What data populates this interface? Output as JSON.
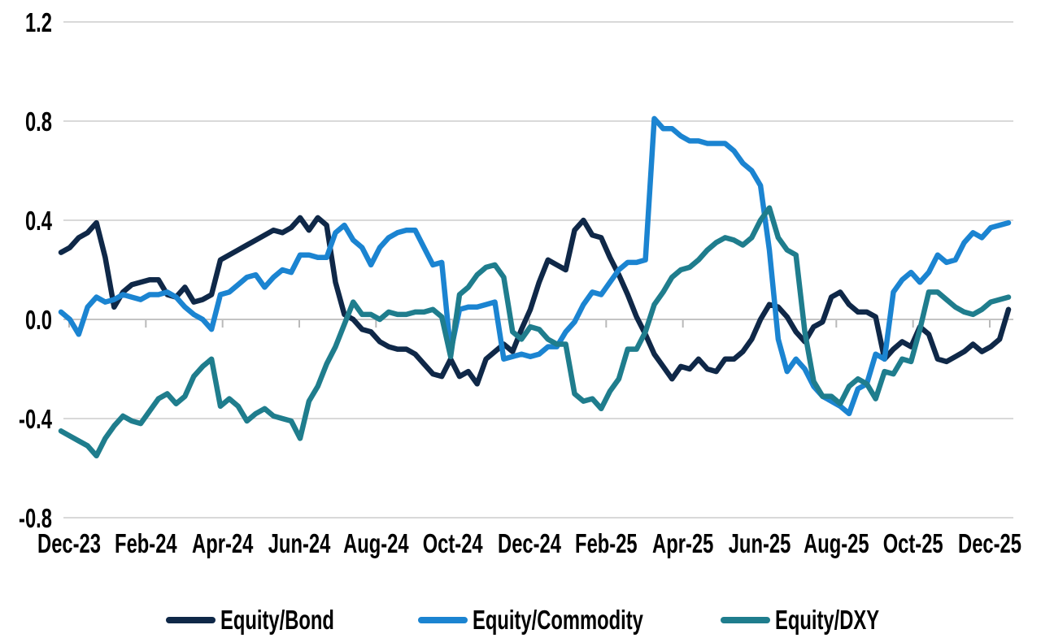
{
  "chart_data": {
    "type": "line",
    "title": "",
    "x_labels": [
      "Dec-23",
      "Feb-24",
      "Apr-24",
      "Jun-24",
      "Aug-24",
      "Oct-24",
      "Dec-24",
      "Feb-25",
      "Apr-25",
      "Jun-25",
      "Aug-25",
      "Oct-25",
      "Dec-25"
    ],
    "x_frequency": "weekly",
    "y_tick_labels": [
      "1.2",
      "0.8",
      "0.4",
      "0.0",
      "-0.4",
      "-0.8"
    ],
    "y_tick_values": [
      1.2,
      0.8,
      0.4,
      0,
      -0.4,
      -0.8
    ],
    "ylim": [
      -0.8,
      1.2
    ],
    "grid": "horizontal",
    "legend_position": "bottom",
    "colors": {
      "grid": "#d9d9d9",
      "axis": "#c4c4c4",
      "tick": "#b9b9b9",
      "text": "#000000"
    },
    "series": [
      {
        "name": "Equity/Bond",
        "color": "#0f2848",
        "values": [
          0.27,
          0.29,
          0.33,
          0.35,
          0.39,
          0.25,
          0.05,
          0.11,
          0.14,
          0.15,
          0.16,
          0.16,
          0.1,
          0.09,
          0.13,
          0.07,
          0.08,
          0.1,
          0.24,
          0.26,
          0.28,
          0.3,
          0.32,
          0.34,
          0.36,
          0.35,
          0.37,
          0.41,
          0.36,
          0.41,
          0.38,
          0.15,
          0.02,
          0.0,
          -0.04,
          -0.05,
          -0.09,
          -0.11,
          -0.12,
          -0.12,
          -0.14,
          -0.18,
          -0.22,
          -0.23,
          -0.16,
          -0.23,
          -0.21,
          -0.26,
          -0.16,
          -0.13,
          -0.1,
          -0.13,
          -0.04,
          0.04,
          0.15,
          0.24,
          0.22,
          0.2,
          0.36,
          0.4,
          0.34,
          0.33,
          0.25,
          0.18,
          0.1,
          0.01,
          -0.06,
          -0.14,
          -0.19,
          -0.24,
          -0.19,
          -0.2,
          -0.16,
          -0.2,
          -0.21,
          -0.16,
          -0.16,
          -0.13,
          -0.08,
          0.0,
          0.06,
          0.05,
          0.01,
          -0.05,
          -0.09,
          -0.03,
          -0.01,
          0.09,
          0.11,
          0.06,
          0.03,
          0.03,
          0.01,
          -0.16,
          -0.12,
          -0.09,
          -0.11,
          -0.03,
          -0.06,
          -0.16,
          -0.17,
          -0.15,
          -0.13,
          -0.1,
          -0.13,
          -0.11,
          -0.08,
          0.04
        ]
      },
      {
        "name": "Equity/Commodity",
        "color": "#1b84d1",
        "values": [
          0.03,
          0.0,
          -0.06,
          0.05,
          0.09,
          0.07,
          0.08,
          0.1,
          0.09,
          0.08,
          0.1,
          0.1,
          0.11,
          0.09,
          0.05,
          0.02,
          0.0,
          -0.04,
          0.1,
          0.11,
          0.14,
          0.17,
          0.18,
          0.13,
          0.17,
          0.2,
          0.19,
          0.26,
          0.26,
          0.25,
          0.25,
          0.35,
          0.38,
          0.32,
          0.29,
          0.22,
          0.29,
          0.33,
          0.35,
          0.36,
          0.36,
          0.29,
          0.22,
          0.23,
          -0.13,
          0.04,
          0.05,
          0.05,
          0.06,
          0.07,
          -0.16,
          -0.15,
          -0.14,
          -0.15,
          -0.14,
          -0.11,
          -0.11,
          -0.05,
          -0.01,
          0.06,
          0.11,
          0.1,
          0.15,
          0.2,
          0.23,
          0.23,
          0.24,
          0.81,
          0.77,
          0.77,
          0.74,
          0.72,
          0.72,
          0.71,
          0.71,
          0.71,
          0.68,
          0.63,
          0.6,
          0.54,
          0.28,
          -0.08,
          -0.21,
          -0.16,
          -0.2,
          -0.27,
          -0.31,
          -0.33,
          -0.35,
          -0.38,
          -0.28,
          -0.26,
          -0.14,
          -0.16,
          0.11,
          0.16,
          0.19,
          0.15,
          0.19,
          0.26,
          0.23,
          0.24,
          0.31,
          0.35,
          0.33,
          0.37,
          0.38,
          0.39
        ]
      },
      {
        "name": "Equity/DXY",
        "color": "#1f7d8d",
        "values": [
          -0.45,
          -0.47,
          -0.49,
          -0.51,
          -0.55,
          -0.48,
          -0.43,
          -0.39,
          -0.41,
          -0.42,
          -0.37,
          -0.32,
          -0.3,
          -0.34,
          -0.31,
          -0.23,
          -0.19,
          -0.16,
          -0.35,
          -0.32,
          -0.35,
          -0.41,
          -0.38,
          -0.36,
          -0.39,
          -0.4,
          -0.41,
          -0.48,
          -0.33,
          -0.27,
          -0.18,
          -0.11,
          -0.02,
          0.07,
          0.02,
          0.02,
          0.0,
          0.03,
          0.02,
          0.02,
          0.03,
          0.03,
          0.04,
          0.01,
          -0.15,
          0.1,
          0.13,
          0.18,
          0.21,
          0.22,
          0.17,
          -0.05,
          -0.08,
          -0.03,
          -0.04,
          -0.08,
          -0.1,
          -0.1,
          -0.3,
          -0.33,
          -0.32,
          -0.36,
          -0.29,
          -0.24,
          -0.12,
          -0.12,
          -0.05,
          0.06,
          0.11,
          0.17,
          0.2,
          0.21,
          0.24,
          0.28,
          0.31,
          0.33,
          0.32,
          0.3,
          0.33,
          0.4,
          0.45,
          0.33,
          0.28,
          0.26,
          -0.05,
          -0.25,
          -0.31,
          -0.31,
          -0.34,
          -0.27,
          -0.24,
          -0.26,
          -0.32,
          -0.21,
          -0.22,
          -0.16,
          -0.17,
          -0.04,
          0.11,
          0.11,
          0.08,
          0.05,
          0.03,
          0.02,
          0.04,
          0.07,
          0.08,
          0.09
        ]
      }
    ]
  }
}
